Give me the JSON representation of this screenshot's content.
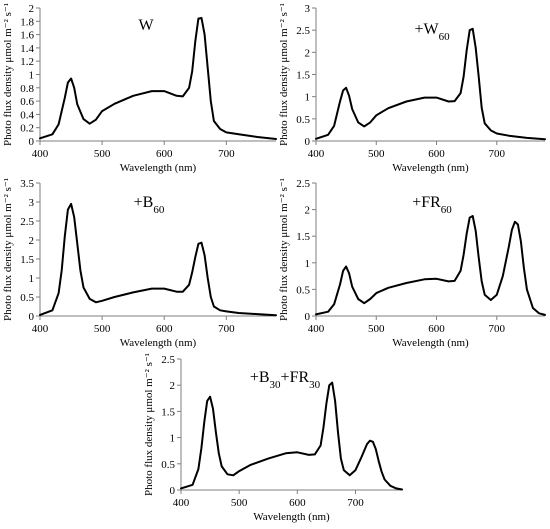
{
  "chart_data": [
    {
      "type": "line",
      "title": "W",
      "title_sub": "",
      "xlabel": "Wavelength (nm)",
      "ylabel": "Photo flux density μmol m⁻² s⁻¹",
      "xlim": [
        400,
        780
      ],
      "ylim": [
        0,
        2
      ],
      "xticks": [
        400,
        500,
        600,
        700
      ],
      "yticks": [
        0,
        0.2,
        0.4,
        0.6,
        0.8,
        1,
        1.2,
        1.4,
        1.6,
        1.8,
        2
      ],
      "ytick_labels": [
        "0",
        "0.2",
        "0.4",
        "0.6",
        "0.8",
        "1",
        "1.2",
        "1.4",
        "1.6",
        "1.8",
        "2"
      ],
      "grid": false,
      "series": [
        {
          "x": [
            400,
            420,
            430,
            440,
            445,
            450,
            455,
            460,
            470,
            480,
            490,
            500,
            520,
            550,
            580,
            600,
            620,
            630,
            640,
            645,
            650,
            655,
            660,
            665,
            670,
            675,
            680,
            690,
            700,
            720,
            750,
            780
          ],
          "y": [
            0.04,
            0.1,
            0.25,
            0.65,
            0.88,
            0.94,
            0.8,
            0.55,
            0.33,
            0.26,
            0.32,
            0.45,
            0.56,
            0.68,
            0.75,
            0.75,
            0.68,
            0.67,
            0.8,
            1.05,
            1.5,
            1.84,
            1.85,
            1.6,
            1.1,
            0.6,
            0.3,
            0.18,
            0.13,
            0.1,
            0.06,
            0.03
          ]
        }
      ]
    },
    {
      "type": "line",
      "title": "+W",
      "title_sub": "60",
      "xlabel": "Wavelength (nm)",
      "ylabel": "Photo flux density μmol m⁻² s⁻¹",
      "xlim": [
        400,
        780
      ],
      "ylim": [
        0,
        3
      ],
      "xticks": [
        400,
        500,
        600,
        700
      ],
      "yticks": [
        0,
        0.5,
        1,
        1.5,
        2,
        2.5,
        3
      ],
      "ytick_labels": [
        "0",
        "0.5",
        "1",
        "1.5",
        "2",
        "2.5",
        "3"
      ],
      "grid": false,
      "series": [
        {
          "x": [
            400,
            420,
            430,
            440,
            445,
            450,
            455,
            460,
            470,
            480,
            490,
            500,
            520,
            550,
            580,
            600,
            620,
            630,
            640,
            645,
            650,
            655,
            660,
            665,
            670,
            675,
            680,
            690,
            700,
            720,
            750,
            780
          ],
          "y": [
            0.05,
            0.14,
            0.34,
            0.9,
            1.14,
            1.2,
            1.02,
            0.72,
            0.42,
            0.33,
            0.42,
            0.58,
            0.74,
            0.89,
            0.98,
            0.98,
            0.89,
            0.9,
            1.08,
            1.45,
            2.05,
            2.5,
            2.53,
            2.1,
            1.45,
            0.75,
            0.4,
            0.24,
            0.17,
            0.12,
            0.07,
            0.04
          ]
        }
      ]
    },
    {
      "type": "line",
      "title": "+B",
      "title_sub": "60",
      "xlabel": "Wavelength (nm)",
      "ylabel": "Photo flux density μmol m⁻² s⁻¹",
      "xlim": [
        400,
        780
      ],
      "ylim": [
        0,
        3.5
      ],
      "xticks": [
        400,
        500,
        600,
        700
      ],
      "yticks": [
        0,
        0.5,
        1,
        1.5,
        2,
        2.5,
        3,
        3.5
      ],
      "ytick_labels": [
        "0",
        "0.5",
        "1",
        "1.5",
        "2",
        "2.5",
        "3",
        "3.5"
      ],
      "grid": false,
      "series": [
        {
          "x": [
            400,
            420,
            430,
            435,
            440,
            445,
            450,
            455,
            460,
            465,
            470,
            480,
            490,
            500,
            520,
            550,
            580,
            600,
            620,
            630,
            640,
            645,
            650,
            655,
            660,
            665,
            670,
            675,
            680,
            690,
            700,
            720,
            750,
            780
          ],
          "y": [
            0.03,
            0.15,
            0.6,
            1.2,
            2.1,
            2.8,
            2.95,
            2.6,
            1.9,
            1.2,
            0.75,
            0.45,
            0.36,
            0.4,
            0.5,
            0.62,
            0.72,
            0.72,
            0.64,
            0.64,
            0.82,
            1.15,
            1.55,
            1.9,
            1.93,
            1.6,
            1.0,
            0.5,
            0.25,
            0.15,
            0.12,
            0.08,
            0.05,
            0.02
          ]
        }
      ]
    },
    {
      "type": "line",
      "title": "+FR",
      "title_sub": "60",
      "xlabel": "Wavelength (nm)",
      "ylabel": "Photo flux density μmol m⁻² s⁻¹",
      "xlim": [
        400,
        780
      ],
      "ylim": [
        0,
        2.5
      ],
      "xticks": [
        400,
        500,
        600,
        700
      ],
      "yticks": [
        0,
        0.5,
        1,
        1.5,
        2,
        2.5
      ],
      "ytick_labels": [
        "0",
        "0.5",
        "1",
        "1.5",
        "2",
        "2.5"
      ],
      "grid": false,
      "series": [
        {
          "x": [
            400,
            420,
            430,
            440,
            445,
            450,
            455,
            460,
            470,
            480,
            490,
            500,
            520,
            550,
            580,
            600,
            620,
            630,
            640,
            645,
            650,
            655,
            660,
            665,
            670,
            675,
            680,
            690,
            700,
            710,
            720,
            725,
            730,
            735,
            740,
            745,
            750,
            760,
            770,
            780
          ],
          "y": [
            0.03,
            0.08,
            0.22,
            0.6,
            0.85,
            0.93,
            0.8,
            0.55,
            0.32,
            0.24,
            0.32,
            0.43,
            0.53,
            0.62,
            0.69,
            0.7,
            0.65,
            0.66,
            0.85,
            1.15,
            1.55,
            1.85,
            1.88,
            1.6,
            1.1,
            0.65,
            0.4,
            0.3,
            0.4,
            0.75,
            1.3,
            1.62,
            1.77,
            1.72,
            1.4,
            0.9,
            0.5,
            0.15,
            0.05,
            0.02
          ]
        }
      ]
    },
    {
      "type": "line",
      "title": "+B",
      "title_sub": "30",
      "title_mid": "+FR",
      "title_sub2": "30",
      "xlabel": "Wavelength (nm)",
      "ylabel": "Photo flux density μmol m⁻² s⁻¹",
      "xlim": [
        400,
        780
      ],
      "ylim": [
        0,
        2.5
      ],
      "xticks": [
        400,
        500,
        600,
        700
      ],
      "yticks": [
        0,
        0.5,
        1,
        1.5,
        2,
        2.5
      ],
      "ytick_labels": [
        "0",
        "0.5",
        "1",
        "1.5",
        "2",
        "2.5"
      ],
      "grid": false,
      "series": [
        {
          "x": [
            400,
            420,
            430,
            435,
            440,
            445,
            450,
            455,
            460,
            465,
            470,
            480,
            490,
            500,
            520,
            550,
            580,
            600,
            620,
            630,
            640,
            645,
            650,
            655,
            660,
            665,
            670,
            675,
            680,
            690,
            700,
            710,
            720,
            725,
            730,
            735,
            740,
            745,
            750,
            760,
            770,
            780
          ],
          "y": [
            0.03,
            0.1,
            0.4,
            0.8,
            1.3,
            1.7,
            1.78,
            1.55,
            1.1,
            0.7,
            0.45,
            0.3,
            0.28,
            0.36,
            0.48,
            0.6,
            0.7,
            0.72,
            0.67,
            0.68,
            0.85,
            1.2,
            1.65,
            2.0,
            2.05,
            1.7,
            1.1,
            0.6,
            0.38,
            0.28,
            0.38,
            0.62,
            0.88,
            0.94,
            0.92,
            0.78,
            0.55,
            0.35,
            0.2,
            0.08,
            0.03,
            0.01
          ]
        }
      ]
    }
  ]
}
